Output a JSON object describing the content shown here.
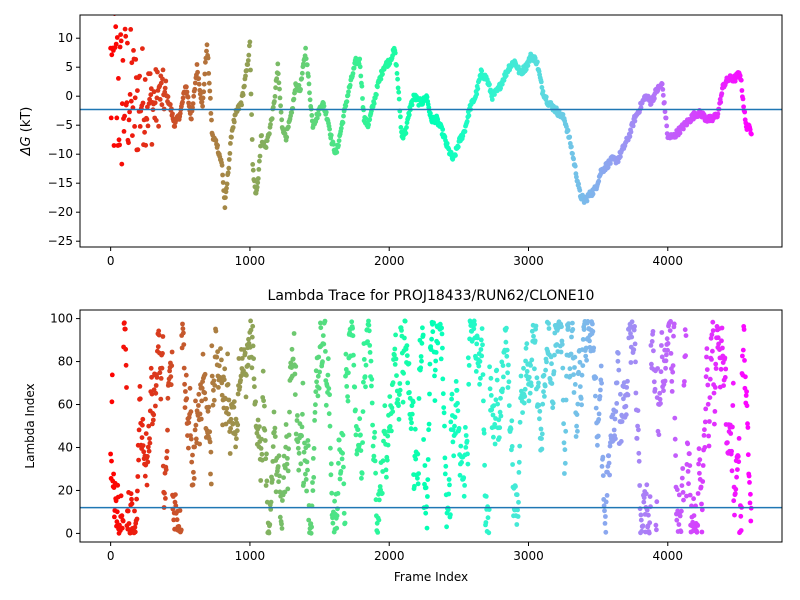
{
  "chart_data": [
    {
      "type": "scatter",
      "title": "",
      "xlabel": "",
      "ylabel_prefix": "ΔG",
      "ylabel_suffix": " (kT)",
      "xlim": [
        -220,
        4820
      ],
      "ylim": [
        -26,
        14
      ],
      "xticks": [
        0,
        1000,
        2000,
        3000,
        4000
      ],
      "yticks": [
        10,
        5,
        0,
        -5,
        -10,
        -15,
        -20,
        -25
      ],
      "hline": -2.3,
      "hline_color": "#1f77b4",
      "colormap": "rainbow",
      "trace": [
        [
          0,
          10
        ],
        [
          40,
          5
        ],
        [
          80,
          -2
        ],
        [
          120,
          3
        ],
        [
          180,
          -4
        ],
        [
          240,
          1
        ],
        [
          300,
          -6
        ],
        [
          360,
          2
        ],
        [
          420,
          -1
        ],
        [
          460,
          -5
        ],
        [
          500,
          -3
        ],
        [
          540,
          2
        ],
        [
          580,
          -4
        ],
        [
          620,
          5
        ],
        [
          660,
          -2
        ],
        [
          690,
          9
        ],
        [
          700,
          6
        ],
        [
          730,
          -7
        ],
        [
          760,
          -8
        ],
        [
          800,
          -12
        ],
        [
          820,
          -19
        ],
        [
          840,
          -14
        ],
        [
          870,
          -6
        ],
        [
          900,
          -3
        ],
        [
          940,
          -1
        ],
        [
          980,
          5
        ],
        [
          1000,
          9
        ],
        [
          1020,
          -12
        ],
        [
          1040,
          -17
        ],
        [
          1060,
          -14
        ],
        [
          1080,
          -7
        ],
        [
          1110,
          -9
        ],
        [
          1140,
          -6
        ],
        [
          1170,
          -2
        ],
        [
          1200,
          5
        ],
        [
          1230,
          -5
        ],
        [
          1260,
          -7
        ],
        [
          1300,
          -3
        ],
        [
          1330,
          2
        ],
        [
          1360,
          1
        ],
        [
          1400,
          8
        ],
        [
          1420,
          3
        ],
        [
          1450,
          -5
        ],
        [
          1490,
          -3
        ],
        [
          1520,
          -1
        ],
        [
          1560,
          -4
        ],
        [
          1590,
          -8
        ],
        [
          1620,
          -10
        ],
        [
          1660,
          -5
        ],
        [
          1700,
          0
        ],
        [
          1740,
          4
        ],
        [
          1760,
          6
        ],
        [
          1790,
          6
        ],
        [
          1820,
          -4
        ],
        [
          1850,
          -5
        ],
        [
          1880,
          -2
        ],
        [
          1920,
          2
        ],
        [
          1960,
          5
        ],
        [
          2000,
          6
        ],
        [
          2040,
          8
        ],
        [
          2060,
          3
        ],
        [
          2090,
          -7
        ],
        [
          2120,
          -6
        ],
        [
          2150,
          -2
        ],
        [
          2180,
          0
        ],
        [
          2210,
          -1
        ],
        [
          2240,
          -1
        ],
        [
          2270,
          0
        ],
        [
          2300,
          -4
        ],
        [
          2340,
          -4
        ],
        [
          2380,
          -6
        ],
        [
          2420,
          -9
        ],
        [
          2460,
          -11
        ],
        [
          2500,
          -8
        ],
        [
          2540,
          -6
        ],
        [
          2580,
          -2
        ],
        [
          2620,
          0
        ],
        [
          2660,
          4
        ],
        [
          2700,
          3
        ],
        [
          2740,
          0
        ],
        [
          2780,
          1
        ],
        [
          2820,
          3
        ],
        [
          2860,
          5
        ],
        [
          2900,
          6
        ],
        [
          2940,
          4
        ],
        [
          2980,
          5
        ],
        [
          3020,
          7
        ],
        [
          3060,
          6
        ],
        [
          3100,
          1
        ],
        [
          3140,
          -1
        ],
        [
          3180,
          -2
        ],
        [
          3220,
          -3
        ],
        [
          3260,
          -4
        ],
        [
          3300,
          -8
        ],
        [
          3340,
          -13
        ],
        [
          3370,
          -17
        ],
        [
          3400,
          -18
        ],
        [
          3440,
          -17
        ],
        [
          3480,
          -16
        ],
        [
          3520,
          -13
        ],
        [
          3560,
          -12
        ],
        [
          3600,
          -11
        ],
        [
          3640,
          -11
        ],
        [
          3680,
          -9
        ],
        [
          3720,
          -7
        ],
        [
          3760,
          -4
        ],
        [
          3800,
          -2
        ],
        [
          3840,
          0
        ],
        [
          3880,
          -1
        ],
        [
          3920,
          1
        ],
        [
          3960,
          2
        ],
        [
          4000,
          -7
        ],
        [
          4040,
          -7
        ],
        [
          4080,
          -6
        ],
        [
          4120,
          -5
        ],
        [
          4160,
          -4
        ],
        [
          4200,
          -3
        ],
        [
          4240,
          -3
        ],
        [
          4280,
          -4
        ],
        [
          4320,
          -4
        ],
        [
          4360,
          -3
        ],
        [
          4400,
          2
        ],
        [
          4440,
          3
        ],
        [
          4480,
          3
        ],
        [
          4520,
          4
        ],
        [
          4560,
          -5
        ],
        [
          4600,
          -6
        ]
      ]
    },
    {
      "type": "scatter",
      "title": "Lambda Trace for PROJ18433/RUN62/CLONE10",
      "xlabel": "Frame Index",
      "ylabel": "Lambda Index",
      "xlim": [
        -220,
        4820
      ],
      "ylim": [
        -4,
        104
      ],
      "xticks": [
        0,
        1000,
        2000,
        3000,
        4000
      ],
      "yticks": [
        100,
        80,
        60,
        40,
        20,
        0
      ],
      "hline": 12,
      "hline_color": "#1f77b4",
      "colormap": "rainbow",
      "x_max": 4600,
      "lambda_min": 0,
      "lambda_max": 99
    }
  ]
}
